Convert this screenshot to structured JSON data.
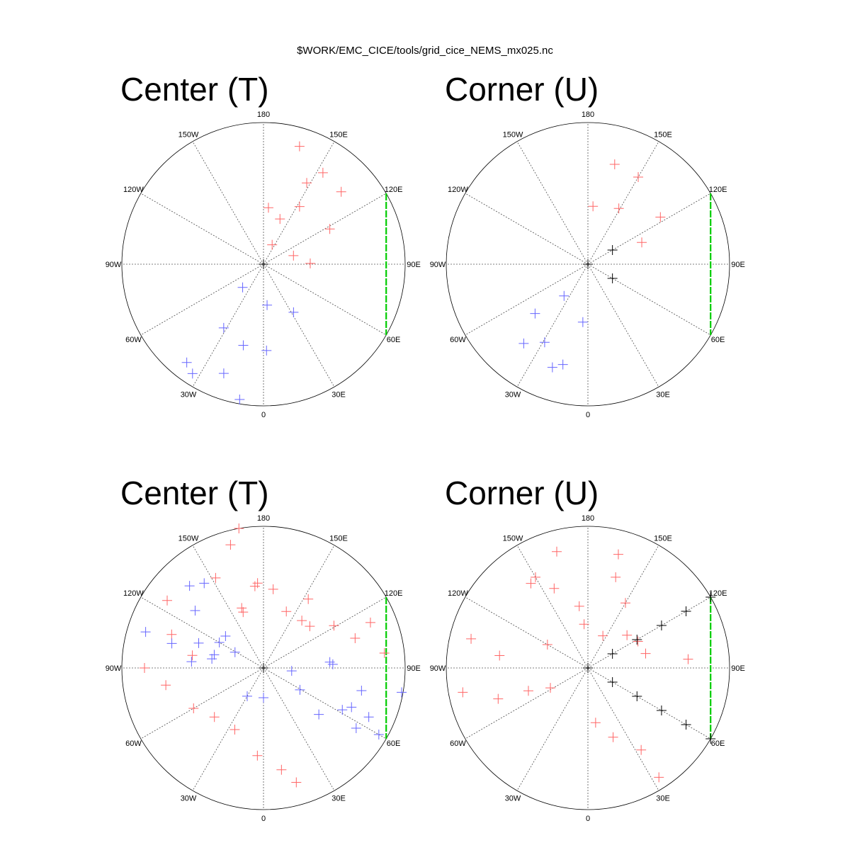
{
  "figure_title": "$WORK/EMC_CICE/tools/grid_cice_NEMS_mx025.nc",
  "colors": {
    "ring": "#000000",
    "grid": "#555555",
    "red_marker": "#ff6666",
    "blue_marker": "#6666ff",
    "black_marker": "#000000",
    "seam_line": "#00cc00"
  },
  "chart_data": [
    {
      "type": "scatter",
      "projection": "polar-stereographic",
      "title": "Center (T)",
      "lon_labels": [
        "0",
        "30E",
        "60E",
        "90E",
        "120E",
        "150E",
        "180",
        "150W",
        "120W",
        "90W",
        "60W",
        "30W"
      ],
      "grid": true,
      "seam_line": {
        "lon_start": 120,
        "lon_end": 60
      },
      "series": [
        {
          "color": "red",
          "points": [
            [
              163,
              0.87
            ],
            [
              147,
              0.77
            ],
            [
              133,
              0.75
            ],
            [
              152,
              0.65
            ],
            [
              148,
              0.48
            ],
            [
              118,
              0.53
            ],
            [
              160,
              0.34
            ],
            [
              175,
              0.4
            ],
            [
              106,
              0.22
            ],
            [
              156,
              0.15
            ],
            [
              91,
              0.33
            ]
          ]
        },
        {
          "color": "blue",
          "points": [
            [
              -42,
              0.22
            ],
            [
              5,
              0.29
            ],
            [
              -33,
              0.92
            ],
            [
              -20,
              0.82
            ],
            [
              -38,
              0.88
            ],
            [
              -10,
              0.97
            ],
            [
              -14,
              0.59
            ],
            [
              2,
              0.61
            ],
            [
              -32,
              0.53
            ],
            [
              32,
              0.4
            ]
          ]
        },
        {
          "color": "black",
          "points": [
            [
              0,
              0.0
            ]
          ]
        }
      ]
    },
    {
      "type": "scatter",
      "projection": "polar-stereographic",
      "title": "Corner (U)",
      "lon_labels": [
        "0",
        "30E",
        "60E",
        "90E",
        "120E",
        "150E",
        "180",
        "150W",
        "120W",
        "90W",
        "60W",
        "30W"
      ],
      "grid": true,
      "seam_line": {
        "lon_start": 120,
        "lon_end": 60
      },
      "series": [
        {
          "color": "red",
          "points": [
            [
              165,
              0.73
            ],
            [
              150,
              0.71
            ],
            [
              123,
              0.61
            ],
            [
              151,
              0.45
            ],
            [
              112,
              0.41
            ],
            [
              175,
              0.41
            ]
          ]
        },
        {
          "color": "blue",
          "points": [
            [
              -37,
              0.28
            ],
            [
              -47,
              0.51
            ],
            [
              -39,
              0.72
            ],
            [
              -29,
              0.63
            ],
            [
              -19,
              0.77
            ],
            [
              -14,
              0.73
            ],
            [
              -5,
              0.41
            ]
          ]
        },
        {
          "color": "black",
          "points": [
            [
              120,
              0.2
            ],
            [
              60,
              0.2
            ],
            [
              0,
              0.0
            ]
          ]
        }
      ]
    },
    {
      "type": "scatter",
      "projection": "polar-stereographic",
      "title": "Center (T)",
      "lon_labels": [
        "0",
        "30E",
        "60E",
        "90E",
        "120E",
        "150E",
        "180",
        "150W",
        "120W",
        "90W",
        "60W",
        "30W"
      ],
      "grid": true,
      "seam_line": {
        "lon_start": 120,
        "lon_end": 60
      },
      "series": [
        {
          "color": "red",
          "points": [
            [
              -174,
              0.58
            ],
            [
              -160,
              0.42
            ],
            [
              -125,
              0.83
            ],
            [
              -110,
              0.69
            ],
            [
              -100,
              0.51
            ],
            [
              -90,
              0.84
            ],
            [
              -80,
              0.7
            ],
            [
              -60,
              0.57
            ],
            [
              -45,
              0.49
            ],
            [
              -25,
              0.48
            ],
            [
              -165,
              0.9
            ],
            [
              -152,
              0.72
            ],
            [
              -170,
              1.0
            ],
            [
              -176,
              0.6
            ],
            [
              -160,
              0.45
            ],
            [
              -4,
              0.62
            ],
            [
              10,
              0.73
            ],
            [
              16,
              0.84
            ],
            [
              173,
              0.56
            ],
            [
              158,
              0.43
            ],
            [
              141,
              0.43
            ],
            [
              121,
              0.58
            ],
            [
              108,
              0.68
            ],
            [
              97,
              0.86
            ],
            [
              113,
              0.82
            ],
            [
              147,
              0.58
            ],
            [
              132,
              0.44
            ]
          ]
        },
        {
          "color": "blue",
          "points": [
            [
              -107,
              0.87
            ],
            [
              -105,
              0.67
            ],
            [
              -111,
              0.49
            ],
            [
              -120,
              0.36
            ],
            [
              -130,
              0.35
            ],
            [
              -95,
              0.51
            ],
            [
              -105,
              0.36
            ],
            [
              -145,
              0.73
            ],
            [
              -138,
              0.78
            ],
            [
              -130,
              0.63
            ],
            [
              -100,
              0.37
            ],
            [
              -119,
              0.23
            ],
            [
              -30,
              0.23
            ],
            [
              0,
              0.21
            ],
            [
              95,
              0.47
            ],
            [
              84,
              0.2
            ],
            [
              59,
              0.3
            ],
            [
              62,
              0.63
            ],
            [
              50,
              0.51
            ],
            [
              57,
              0.78
            ],
            [
              60,
              0.94
            ],
            [
              77,
              0.71
            ],
            [
              80,
              0.99
            ],
            [
              65,
              0.82
            ],
            [
              93,
              0.49
            ],
            [
              66,
              0.68
            ]
          ]
        },
        {
          "color": "black",
          "points": [
            [
              0,
              0.0
            ]
          ]
        }
      ]
    },
    {
      "type": "scatter",
      "projection": "polar-stereographic",
      "title": "Corner (U)",
      "lon_labels": [
        "0",
        "30E",
        "60E",
        "90E",
        "120E",
        "150E",
        "180",
        "150W",
        "120W",
        "90W",
        "60W",
        "30W"
      ],
      "grid": true,
      "seam_line": {
        "lon_start": 120,
        "lon_end": 60
      },
      "series": [
        {
          "color": "red",
          "points": [
            [
              -146,
              0.72
            ],
            [
              -150,
              0.74
            ],
            [
              -165,
              0.85
            ],
            [
              -157,
              0.61
            ],
            [
              -172,
              0.44
            ],
            [
              -175,
              0.31
            ],
            [
              -120,
              0.33
            ],
            [
              -98,
              0.63
            ],
            [
              -104,
              0.85
            ],
            [
              -79,
              0.9
            ],
            [
              -71,
              0.67
            ],
            [
              -69,
              0.45
            ],
            [
              -62,
              0.3
            ],
            [
              8,
              0.39
            ],
            [
              20,
              0.52
            ],
            [
              33,
              0.69
            ],
            [
              33,
              0.92
            ],
            [
              155,
              0.25
            ],
            [
              130,
              0.36
            ],
            [
              118,
              0.4
            ],
            [
              104,
              0.42
            ],
            [
              95,
              0.71
            ],
            [
              165,
              0.83
            ],
            [
              163,
              0.67
            ],
            [
              150,
              0.53
            ]
          ]
        },
        {
          "color": "blue",
          "points": []
        },
        {
          "color": "black",
          "points": [
            [
              120,
              0.2
            ],
            [
              120,
              0.4
            ],
            [
              120,
              0.6
            ],
            [
              120,
              0.8
            ],
            [
              120,
              1.0
            ],
            [
              60,
              0.2
            ],
            [
              60,
              0.4
            ],
            [
              60,
              0.6
            ],
            [
              60,
              0.8
            ],
            [
              60,
              1.0
            ],
            [
              0,
              0.0
            ]
          ]
        }
      ]
    }
  ]
}
